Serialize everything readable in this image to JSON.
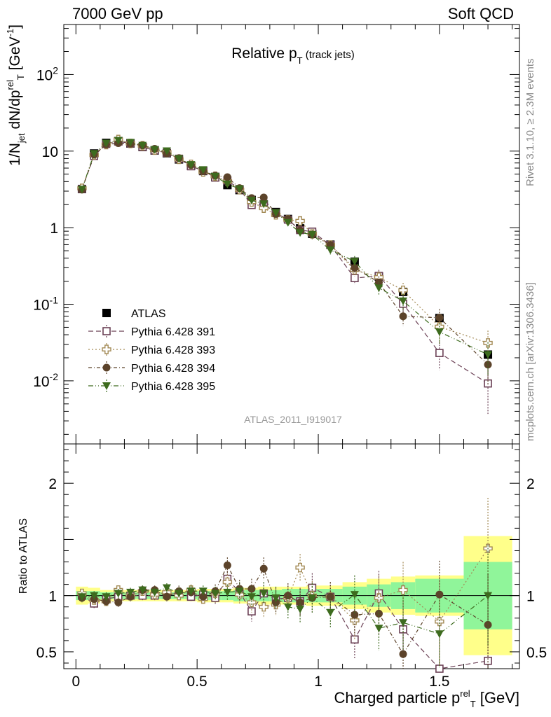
{
  "header": {
    "left": "7000 GeV pp",
    "right": "Soft QCD"
  },
  "side_text": {
    "rivet": "Rivet 3.1.10, ≥ 2.3M events",
    "mcplots": "mcplots.cern.ch [arXiv:1306.3436]"
  },
  "chart_data": {
    "type": "scatter",
    "title": "Relative p_T (track jets)",
    "analysis_label": "ATLAS_2011_I919017",
    "xlabel": "Charged particle p_T^rel [GeV]",
    "ylabel_main": "1/N_jet dN/dp_T^rel [GeV^-1]",
    "ylabel_ratio": "Ratio to ATLAS",
    "log_y": true,
    "xlim": [
      -0.05,
      1.83
    ],
    "ylim_main": [
      0.0015,
      450
    ],
    "ylim_ratio": [
      0.35,
      2.35
    ],
    "x_ticks": [
      "0",
      "0.5",
      "1",
      "1.5"
    ],
    "y_ticks_main": [
      "10^-2",
      "10^-1",
      "1",
      "10",
      "10^2"
    ],
    "y_ticks_ratio": [
      "0.5",
      "1",
      "2"
    ],
    "legend_position": "bottom-left",
    "x": [
      0.025,
      0.075,
      0.125,
      0.175,
      0.225,
      0.275,
      0.325,
      0.375,
      0.425,
      0.475,
      0.525,
      0.575,
      0.625,
      0.675,
      0.725,
      0.775,
      0.825,
      0.875,
      0.925,
      0.975,
      1.05,
      1.15,
      1.25,
      1.35,
      1.5,
      1.7
    ],
    "x_errors": [
      0.025,
      0.025,
      0.025,
      0.025,
      0.025,
      0.025,
      0.025,
      0.025,
      0.025,
      0.025,
      0.025,
      0.025,
      0.025,
      0.025,
      0.025,
      0.025,
      0.025,
      0.025,
      0.025,
      0.025,
      0.05,
      0.05,
      0.05,
      0.05,
      0.1,
      0.1
    ],
    "series": [
      {
        "name": "ATLAS",
        "color": "#000000",
        "marker": "square-filled",
        "values": [
          3.2,
          9.3,
          12.8,
          13.5,
          12.6,
          11.3,
          10.2,
          9.4,
          7.8,
          6.4,
          5.5,
          4.6,
          3.6,
          3.1,
          2.3,
          2.0,
          1.6,
          1.3,
          0.98,
          0.83,
          0.6,
          0.36,
          0.23,
          0.145,
          0.066,
          0.022
        ],
        "band_stat": [
          0.04,
          0.04,
          0.03,
          0.03,
          0.03,
          0.03,
          0.03,
          0.03,
          0.03,
          0.03,
          0.04,
          0.04,
          0.04,
          0.05,
          0.05,
          0.05,
          0.05,
          0.06,
          0.06,
          0.06,
          0.06,
          0.08,
          0.1,
          0.12,
          0.15,
          0.3
        ],
        "band_total": [
          0.08,
          0.07,
          0.05,
          0.05,
          0.05,
          0.05,
          0.05,
          0.05,
          0.05,
          0.05,
          0.06,
          0.06,
          0.06,
          0.07,
          0.07,
          0.08,
          0.08,
          0.08,
          0.08,
          0.09,
          0.09,
          0.12,
          0.15,
          0.17,
          0.18,
          0.53
        ]
      },
      {
        "name": "Pythia 6.428 391",
        "color": "#6b4055",
        "marker": "square-open",
        "ratio": [
          1.0,
          0.93,
          0.97,
          0.99,
          1.0,
          1.0,
          1.0,
          1.01,
          1.02,
          0.99,
          1.01,
          0.98,
          1.15,
          1.03,
          0.86,
          1.02,
          0.97,
          0.98,
          0.95,
          1.07,
          0.99,
          0.61,
          1.02,
          0.7,
          0.35,
          0.42
        ],
        "ratio_err": [
          0.04,
          0.04,
          0.04,
          0.04,
          0.04,
          0.04,
          0.04,
          0.04,
          0.05,
          0.05,
          0.05,
          0.06,
          0.07,
          0.08,
          0.09,
          0.1,
          0.1,
          0.11,
          0.12,
          0.13,
          0.13,
          0.17,
          0.2,
          0.25,
          0.4,
          0.6
        ]
      },
      {
        "name": "Pythia 6.428 393",
        "color": "#a38a55",
        "marker": "cross-open",
        "ratio": [
          1.02,
          0.96,
          0.95,
          1.05,
          1.0,
          1.04,
          1.01,
          1.03,
          1.0,
          1.05,
          0.97,
          1.02,
          1.12,
          1.01,
          0.94,
          0.9,
          0.92,
          0.98,
          1.25,
          1.0,
          0.99,
          0.78,
          0.98,
          1.05,
          0.77,
          1.42
        ],
        "ratio_err": [
          0.04,
          0.04,
          0.04,
          0.04,
          0.04,
          0.04,
          0.04,
          0.04,
          0.05,
          0.05,
          0.05,
          0.06,
          0.07,
          0.08,
          0.09,
          0.1,
          0.1,
          0.11,
          0.12,
          0.13,
          0.13,
          0.17,
          0.2,
          0.25,
          0.4,
          0.45
        ]
      },
      {
        "name": "Pythia 6.428 394",
        "color": "#5c432a",
        "marker": "circle-filled",
        "ratio": [
          0.98,
          0.97,
          0.95,
          0.94,
          0.99,
          1.05,
          1.05,
          0.99,
          1.04,
          1.03,
          0.99,
          1.04,
          1.27,
          1.06,
          1.06,
          1.24,
          0.94,
          1.0,
          0.94,
          0.98,
          0.99,
          0.83,
          0.84,
          0.48,
          1.01,
          0.74
        ],
        "ratio_err": [
          0.04,
          0.04,
          0.04,
          0.04,
          0.04,
          0.04,
          0.04,
          0.04,
          0.05,
          0.05,
          0.05,
          0.06,
          0.07,
          0.08,
          0.09,
          0.1,
          0.1,
          0.11,
          0.12,
          0.13,
          0.13,
          0.17,
          0.2,
          0.25,
          0.3,
          0.45
        ]
      },
      {
        "name": "Pythia 6.428 395",
        "color": "#3d6b1e",
        "marker": "triangle-down-filled",
        "ratio": [
          0.99,
          1.0,
          0.99,
          1.02,
          1.03,
          1.05,
          1.03,
          1.07,
          1.02,
          1.04,
          1.04,
          1.02,
          1.03,
          1.04,
          0.99,
          1.02,
          0.98,
          0.9,
          0.88,
          0.98,
          0.85,
          1.01,
          0.71,
          0.76,
          0.66,
          1.0
        ],
        "ratio_err": [
          0.04,
          0.04,
          0.04,
          0.04,
          0.04,
          0.04,
          0.04,
          0.04,
          0.05,
          0.05,
          0.05,
          0.06,
          0.07,
          0.08,
          0.09,
          0.1,
          0.1,
          0.11,
          0.12,
          0.13,
          0.13,
          0.17,
          0.2,
          0.25,
          0.3,
          0.45
        ]
      }
    ]
  }
}
